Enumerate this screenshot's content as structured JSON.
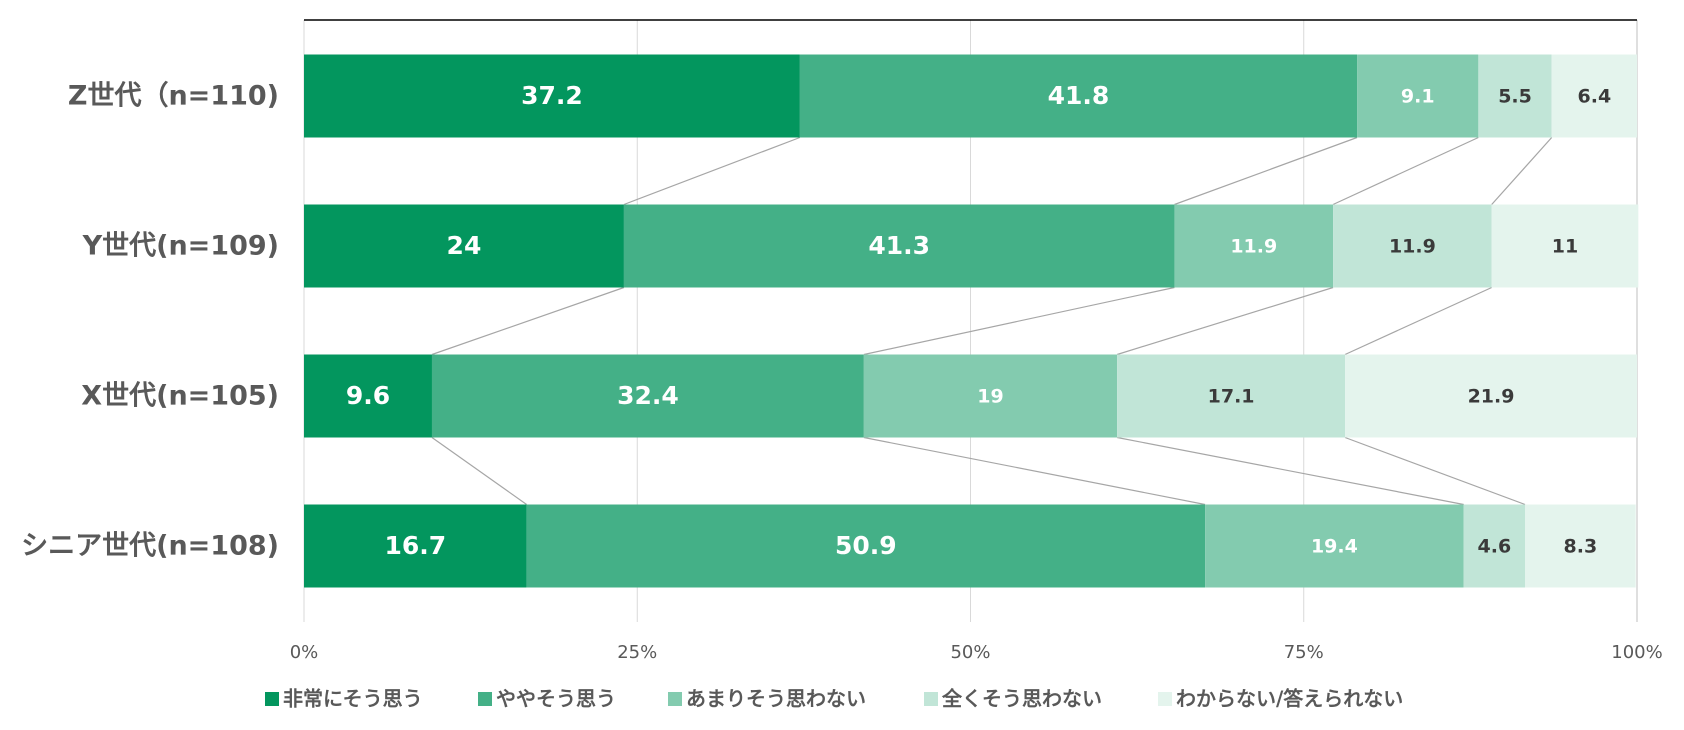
{
  "chart_data": {
    "type": "bar",
    "orientation": "horizontal",
    "stacked": true,
    "normalized": true,
    "categories": [
      "Z世代（n=110)",
      "Y世代(n=109)",
      "X世代(n=105)",
      "シニア世代(n=108)"
    ],
    "series": [
      {
        "name": "非常にそう思う",
        "color": "#03965e",
        "values": [
          37.2,
          24,
          9.6,
          16.7
        ],
        "labels": [
          "37.2",
          "24",
          "9.6",
          "16.7"
        ]
      },
      {
        "name": "ややそう思う",
        "color": "#44b087",
        "values": [
          41.8,
          41.3,
          32.4,
          50.9
        ],
        "labels": [
          "41.8",
          "41.3",
          "32.4",
          "50.9"
        ]
      },
      {
        "name": "あまりそう思わない",
        "color": "#83cbaf",
        "values": [
          9.1,
          11.9,
          19,
          19.4
        ],
        "labels": [
          "9.1",
          "11.9",
          "19",
          "19.4"
        ]
      },
      {
        "name": "全くそう思わない",
        "color": "#c1e5d7",
        "values": [
          5.5,
          11.9,
          17.1,
          4.6
        ],
        "labels": [
          "5.5",
          "11.9",
          "17.1",
          "4.6"
        ]
      },
      {
        "name": "わからない/答えられない",
        "color": "#e4f4ed",
        "values": [
          6.4,
          11,
          21.9,
          8.3
        ],
        "labels": [
          "6.4",
          "11",
          "21.9",
          "8.3"
        ]
      }
    ],
    "xticks": [
      "0%",
      "25%",
      "50%",
      "75%",
      "100%"
    ],
    "xlim": [
      0,
      100
    ],
    "grid": true,
    "series_lines": true,
    "legend": "bottom",
    "title": "",
    "xlabel": "",
    "ylabel": ""
  }
}
